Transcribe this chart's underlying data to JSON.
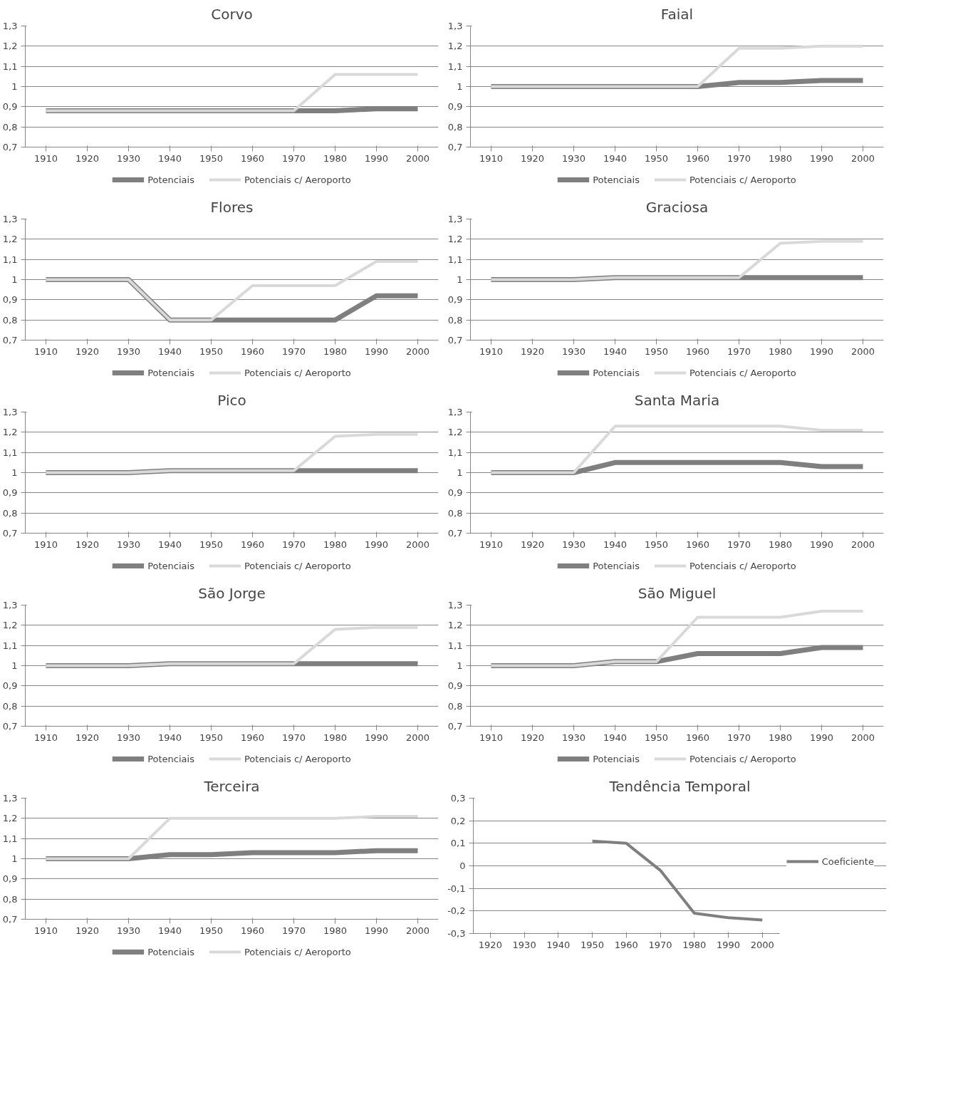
{
  "chart_data": [
    {
      "type": "line",
      "title": "Corvo",
      "categories": [
        "1910",
        "1920",
        "1930",
        "1940",
        "1950",
        "1960",
        "1970",
        "1980",
        "1990",
        "2000"
      ],
      "series": [
        {
          "name": "Potenciais",
          "color": "#7f7f7f",
          "values": [
            0.88,
            0.88,
            0.88,
            0.88,
            0.88,
            0.88,
            0.88,
            0.88,
            0.89,
            0.89
          ]
        },
        {
          "name": "Potenciais c/ Aeroporto",
          "color": "#d9d9d9",
          "values": [
            0.88,
            0.88,
            0.88,
            0.88,
            0.88,
            0.88,
            0.88,
            1.06,
            1.06,
            1.06
          ]
        }
      ],
      "ylim": [
        0.7,
        1.3
      ],
      "yticks": [
        {
          "value": 0.7,
          "label": "0,7"
        },
        {
          "value": 0.8,
          "label": "0,8"
        },
        {
          "value": 0.9,
          "label": "0,9"
        },
        {
          "value": 1,
          "label": "1"
        },
        {
          "value": 1.1,
          "label": "1,1"
        },
        {
          "value": 1.2,
          "label": "1,2"
        },
        {
          "value": 1.3,
          "label": "1,3"
        }
      ],
      "grid": "y",
      "legend": "bottom"
    },
    {
      "type": "line",
      "title": "Faial",
      "categories": [
        "1910",
        "1920",
        "1930",
        "1940",
        "1950",
        "1960",
        "1970",
        "1980",
        "1990",
        "2000"
      ],
      "series": [
        {
          "name": "Potenciais",
          "color": "#7f7f7f",
          "values": [
            1.0,
            1.0,
            1.0,
            1.0,
            1.0,
            1.0,
            1.02,
            1.02,
            1.03,
            1.03
          ]
        },
        {
          "name": "Potenciais c/ Aeroporto",
          "color": "#d9d9d9",
          "values": [
            1.0,
            1.0,
            1.0,
            1.0,
            1.0,
            1.0,
            1.19,
            1.19,
            1.2,
            1.2
          ]
        }
      ],
      "ylim": [
        0.7,
        1.3
      ],
      "yticks": [
        {
          "value": 0.7,
          "label": "0,7"
        },
        {
          "value": 0.8,
          "label": "0,8"
        },
        {
          "value": 0.9,
          "label": "0,9"
        },
        {
          "value": 1,
          "label": "1"
        },
        {
          "value": 1.1,
          "label": "1,1"
        },
        {
          "value": 1.2,
          "label": "1,2"
        },
        {
          "value": 1.3,
          "label": "1,3"
        }
      ],
      "grid": "y",
      "legend": "bottom"
    },
    {
      "type": "line",
      "title": "Flores",
      "categories": [
        "1910",
        "1920",
        "1930",
        "1940",
        "1950",
        "1960",
        "1970",
        "1980",
        "1990",
        "2000"
      ],
      "series": [
        {
          "name": "Potenciais",
          "color": "#7f7f7f",
          "values": [
            1.0,
            1.0,
            1.0,
            0.8,
            0.8,
            0.8,
            0.8,
            0.8,
            0.92,
            0.92
          ]
        },
        {
          "name": "Potenciais c/ Aeroporto",
          "color": "#d9d9d9",
          "values": [
            1.0,
            1.0,
            1.0,
            0.8,
            0.8,
            0.97,
            0.97,
            0.97,
            1.09,
            1.09
          ]
        }
      ],
      "ylim": [
        0.7,
        1.3
      ],
      "yticks": [
        {
          "value": 0.7,
          "label": "0,7"
        },
        {
          "value": 0.8,
          "label": "0,8"
        },
        {
          "value": 0.9,
          "label": "0,9"
        },
        {
          "value": 1,
          "label": "1"
        },
        {
          "value": 1.1,
          "label": "1,1"
        },
        {
          "value": 1.2,
          "label": "1,2"
        },
        {
          "value": 1.3,
          "label": "1,3"
        }
      ],
      "grid": "y",
      "legend": "bottom"
    },
    {
      "type": "line",
      "title": "Graciosa",
      "categories": [
        "1910",
        "1920",
        "1930",
        "1940",
        "1950",
        "1960",
        "1970",
        "1980",
        "1990",
        "2000"
      ],
      "series": [
        {
          "name": "Potenciais",
          "color": "#7f7f7f",
          "values": [
            1.0,
            1.0,
            1.0,
            1.01,
            1.01,
            1.01,
            1.01,
            1.01,
            1.01,
            1.01
          ]
        },
        {
          "name": "Potenciais c/ Aeroporto",
          "color": "#d9d9d9",
          "values": [
            1.0,
            1.0,
            1.0,
            1.01,
            1.01,
            1.01,
            1.01,
            1.18,
            1.19,
            1.19
          ]
        }
      ],
      "ylim": [
        0.7,
        1.3
      ],
      "yticks": [
        {
          "value": 0.7,
          "label": "0,7"
        },
        {
          "value": 0.8,
          "label": "0,8"
        },
        {
          "value": 0.9,
          "label": "0,9"
        },
        {
          "value": 1,
          "label": "1"
        },
        {
          "value": 1.1,
          "label": "1,1"
        },
        {
          "value": 1.2,
          "label": "1,2"
        },
        {
          "value": 1.3,
          "label": "1,3"
        }
      ],
      "grid": "y",
      "legend": "bottom"
    },
    {
      "type": "line",
      "title": "Pico",
      "categories": [
        "1910",
        "1920",
        "1930",
        "1940",
        "1950",
        "1960",
        "1970",
        "1980",
        "1990",
        "2000"
      ],
      "series": [
        {
          "name": "Potenciais",
          "color": "#7f7f7f",
          "values": [
            1.0,
            1.0,
            1.0,
            1.01,
            1.01,
            1.01,
            1.01,
            1.01,
            1.01,
            1.01
          ]
        },
        {
          "name": "Potenciais c/ Aeroporto",
          "color": "#d9d9d9",
          "values": [
            1.0,
            1.0,
            1.0,
            1.01,
            1.01,
            1.01,
            1.01,
            1.18,
            1.19,
            1.19
          ]
        }
      ],
      "ylim": [
        0.7,
        1.3
      ],
      "yticks": [
        {
          "value": 0.7,
          "label": "0,7"
        },
        {
          "value": 0.8,
          "label": "0,8"
        },
        {
          "value": 0.9,
          "label": "0,9"
        },
        {
          "value": 1,
          "label": "1"
        },
        {
          "value": 1.1,
          "label": "1,1"
        },
        {
          "value": 1.2,
          "label": "1,2"
        },
        {
          "value": 1.3,
          "label": "1,3"
        }
      ],
      "grid": "y",
      "legend": "bottom"
    },
    {
      "type": "line",
      "title": "Santa Maria",
      "categories": [
        "1910",
        "1920",
        "1930",
        "1940",
        "1950",
        "1960",
        "1970",
        "1980",
        "1990",
        "2000"
      ],
      "series": [
        {
          "name": "Potenciais",
          "color": "#7f7f7f",
          "values": [
            1.0,
            1.0,
            1.0,
            1.05,
            1.05,
            1.05,
            1.05,
            1.05,
            1.03,
            1.03
          ]
        },
        {
          "name": "Potenciais c/ Aeroporto",
          "color": "#d9d9d9",
          "values": [
            1.0,
            1.0,
            1.0,
            1.23,
            1.23,
            1.23,
            1.23,
            1.23,
            1.21,
            1.21
          ]
        }
      ],
      "ylim": [
        0.7,
        1.3
      ],
      "yticks": [
        {
          "value": 0.7,
          "label": "0,7"
        },
        {
          "value": 0.8,
          "label": "0,8"
        },
        {
          "value": 0.9,
          "label": "0,9"
        },
        {
          "value": 1,
          "label": "1"
        },
        {
          "value": 1.1,
          "label": "1,1"
        },
        {
          "value": 1.2,
          "label": "1,2"
        },
        {
          "value": 1.3,
          "label": "1,3"
        }
      ],
      "grid": "y",
      "legend": "bottom"
    },
    {
      "type": "line",
      "title": "São Jorge",
      "categories": [
        "1910",
        "1920",
        "1930",
        "1940",
        "1950",
        "1960",
        "1970",
        "1980",
        "1990",
        "2000"
      ],
      "series": [
        {
          "name": "Potenciais",
          "color": "#7f7f7f",
          "values": [
            1.0,
            1.0,
            1.0,
            1.01,
            1.01,
            1.01,
            1.01,
            1.01,
            1.01,
            1.01
          ]
        },
        {
          "name": "Potenciais c/ Aeroporto",
          "color": "#d9d9d9",
          "values": [
            1.0,
            1.0,
            1.0,
            1.01,
            1.01,
            1.01,
            1.01,
            1.18,
            1.19,
            1.19
          ]
        }
      ],
      "ylim": [
        0.7,
        1.3
      ],
      "yticks": [
        {
          "value": 0.7,
          "label": "0,7"
        },
        {
          "value": 0.8,
          "label": "0,8"
        },
        {
          "value": 0.9,
          "label": "0,9"
        },
        {
          "value": 1,
          "label": "1"
        },
        {
          "value": 1.1,
          "label": "1,1"
        },
        {
          "value": 1.2,
          "label": "1,2"
        },
        {
          "value": 1.3,
          "label": "1,3"
        }
      ],
      "grid": "y",
      "legend": "bottom"
    },
    {
      "type": "line",
      "title": "São Miguel",
      "categories": [
        "1910",
        "1920",
        "1930",
        "1940",
        "1950",
        "1960",
        "1970",
        "1980",
        "1990",
        "2000"
      ],
      "series": [
        {
          "name": "Potenciais",
          "color": "#7f7f7f",
          "values": [
            1.0,
            1.0,
            1.0,
            1.02,
            1.02,
            1.06,
            1.06,
            1.06,
            1.09,
            1.09
          ]
        },
        {
          "name": "Potenciais c/ Aeroporto",
          "color": "#d9d9d9",
          "values": [
            1.0,
            1.0,
            1.0,
            1.02,
            1.02,
            1.24,
            1.24,
            1.24,
            1.27,
            1.27
          ]
        }
      ],
      "ylim": [
        0.7,
        1.3
      ],
      "yticks": [
        {
          "value": 0.7,
          "label": "0,7"
        },
        {
          "value": 0.8,
          "label": "0,8"
        },
        {
          "value": 0.9,
          "label": "0,9"
        },
        {
          "value": 1,
          "label": "1"
        },
        {
          "value": 1.1,
          "label": "1,1"
        },
        {
          "value": 1.2,
          "label": "1,2"
        },
        {
          "value": 1.3,
          "label": "1,3"
        }
      ],
      "grid": "y",
      "legend": "bottom"
    },
    {
      "type": "line",
      "title": "Terceira",
      "categories": [
        "1910",
        "1920",
        "1930",
        "1940",
        "1950",
        "1960",
        "1970",
        "1980",
        "1990",
        "2000"
      ],
      "series": [
        {
          "name": "Potenciais",
          "color": "#7f7f7f",
          "values": [
            1.0,
            1.0,
            1.0,
            1.02,
            1.02,
            1.03,
            1.03,
            1.03,
            1.04,
            1.04
          ]
        },
        {
          "name": "Potenciais c/ Aeroporto",
          "color": "#d9d9d9",
          "values": [
            1.0,
            1.0,
            1.0,
            1.2,
            1.2,
            1.2,
            1.2,
            1.2,
            1.21,
            1.21
          ]
        }
      ],
      "ylim": [
        0.7,
        1.3
      ],
      "yticks": [
        {
          "value": 0.7,
          "label": "0,7"
        },
        {
          "value": 0.8,
          "label": "0,8"
        },
        {
          "value": 0.9,
          "label": "0,9"
        },
        {
          "value": 1,
          "label": "1"
        },
        {
          "value": 1.1,
          "label": "1,1"
        },
        {
          "value": 1.2,
          "label": "1,2"
        },
        {
          "value": 1.3,
          "label": "1,3"
        }
      ],
      "grid": "y",
      "legend": "bottom"
    },
    {
      "type": "line",
      "title": "Tendência Temporal",
      "categories": [
        "1920",
        "1930",
        "1940",
        "1950",
        "1960",
        "1970",
        "1980",
        "1990",
        "2000"
      ],
      "series": [
        {
          "name": "Coeficiente",
          "color": "#7f7f7f",
          "values": [
            null,
            null,
            null,
            0.11,
            0.1,
            -0.02,
            -0.21,
            -0.23,
            -0.24
          ]
        }
      ],
      "ylim": [
        -0.3,
        0.3
      ],
      "yticks": [
        {
          "value": -0.3,
          "label": "-0,3"
        },
        {
          "value": -0.2,
          "label": "-0,2"
        },
        {
          "value": -0.1,
          "label": "-0,1"
        },
        {
          "value": 0,
          "label": "0"
        },
        {
          "value": 0.1,
          "label": "0,1"
        },
        {
          "value": 0.2,
          "label": "0,2"
        },
        {
          "value": 0.3,
          "label": "0,3"
        }
      ],
      "grid": "y",
      "legend": "right"
    }
  ]
}
